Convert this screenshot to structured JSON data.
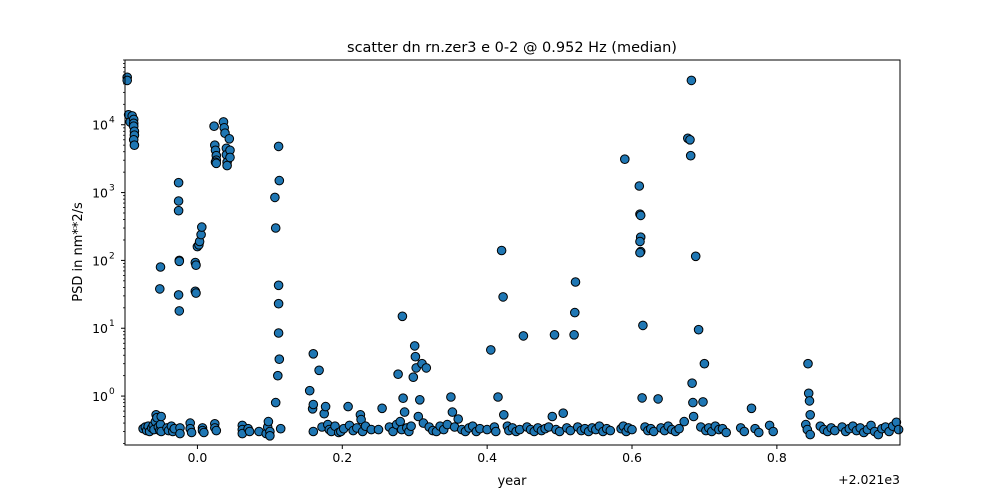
{
  "chart_data": {
    "type": "scatter",
    "title": "scatter dn rn.zer3 e 0-2 @ 0.952 Hz (median)",
    "xlabel": "year",
    "ylabel": "PSD in nm**2/s",
    "x_offset_label": "+2.021e3",
    "x_scale": "linear",
    "y_scale": "log",
    "xlim": [
      -0.1,
      0.97
    ],
    "ylim": [
      0.19,
      90000
    ],
    "x_ticks": [
      0.0,
      0.2,
      0.4,
      0.6,
      0.8
    ],
    "x_tick_labels": [
      "0.0",
      "0.2",
      "0.4",
      "0.6",
      "0.8"
    ],
    "y_ticks": [
      1,
      10,
      100,
      1000,
      10000
    ],
    "y_tick_labels": [
      "10",
      "10",
      "10",
      "10",
      "10"
    ],
    "y_tick_exponents": [
      "0",
      "1",
      "2",
      "3",
      "4"
    ],
    "grid": false,
    "legend": "none",
    "marker_color": "#1f77b4",
    "marker_edge": "#000000",
    "series": [
      {
        "points": [
          [
            -0.097,
            50000
          ],
          [
            -0.097,
            45000
          ],
          [
            -0.095,
            14000
          ],
          [
            -0.093,
            11000
          ],
          [
            -0.09,
            13500
          ],
          [
            -0.088,
            12000
          ],
          [
            -0.088,
            10500
          ],
          [
            -0.088,
            9500
          ],
          [
            -0.087,
            8000
          ],
          [
            -0.087,
            7000
          ],
          [
            -0.088,
            6000
          ],
          [
            -0.087,
            5000
          ],
          [
            -0.075,
            0.33
          ],
          [
            -0.072,
            0.35
          ],
          [
            -0.07,
            0.31
          ],
          [
            -0.068,
            0.36
          ],
          [
            -0.066,
            0.3
          ],
          [
            -0.063,
            0.34
          ],
          [
            -0.061,
            0.37
          ],
          [
            -0.06,
            0.32
          ],
          [
            -0.058,
            0.42
          ],
          [
            -0.057,
            0.53
          ],
          [
            -0.056,
            0.48
          ],
          [
            -0.054,
            0.35
          ],
          [
            -0.052,
            0.31
          ],
          [
            -0.051,
            0.38
          ],
          [
            -0.05,
            0.5
          ],
          [
            -0.05,
            0.3
          ],
          [
            -0.051,
            80
          ],
          [
            -0.052,
            38
          ],
          [
            -0.042,
            0.34
          ],
          [
            -0.04,
            0.31
          ],
          [
            -0.036,
            0.36
          ],
          [
            -0.034,
            0.3
          ],
          [
            -0.032,
            0.33
          ],
          [
            -0.026,
            1400
          ],
          [
            -0.026,
            750
          ],
          [
            -0.026,
            540
          ],
          [
            -0.025,
            100
          ],
          [
            -0.025,
            97
          ],
          [
            -0.026,
            31
          ],
          [
            -0.025,
            18
          ],
          [
            -0.024,
            0.34
          ],
          [
            -0.024,
            0.28
          ],
          [
            -0.01,
            0.4
          ],
          [
            -0.01,
            0.33
          ],
          [
            -0.008,
            0.29
          ],
          [
            -0.003,
            93
          ],
          [
            -0.002,
            85
          ],
          [
            -0.003,
            35
          ],
          [
            -0.002,
            33
          ],
          [
            0.0,
            160
          ],
          [
            0.002,
            170
          ],
          [
            0.003,
            190
          ],
          [
            0.005,
            240
          ],
          [
            0.006,
            310
          ],
          [
            0.007,
            0.34
          ],
          [
            0.007,
            0.31
          ],
          [
            0.009,
            0.29
          ],
          [
            0.023,
            9500
          ],
          [
            0.024,
            5000
          ],
          [
            0.025,
            4200
          ],
          [
            0.026,
            3500
          ],
          [
            0.026,
            3000
          ],
          [
            0.025,
            2800
          ],
          [
            0.026,
            2700
          ],
          [
            0.024,
            0.39
          ],
          [
            0.024,
            0.34
          ],
          [
            0.026,
            0.31
          ],
          [
            0.036,
            11000
          ],
          [
            0.037,
            9000
          ],
          [
            0.038,
            7500
          ],
          [
            0.04,
            4500
          ],
          [
            0.04,
            3600
          ],
          [
            0.041,
            2800
          ],
          [
            0.041,
            2500
          ],
          [
            0.044,
            6200
          ],
          [
            0.045,
            4200
          ],
          [
            0.045,
            3300
          ],
          [
            0.062,
            0.37
          ],
          [
            0.062,
            0.32
          ],
          [
            0.062,
            0.28
          ],
          [
            0.07,
            0.33
          ],
          [
            0.072,
            0.3
          ],
          [
            0.085,
            0.3
          ],
          [
            0.095,
            0.28
          ],
          [
            0.097,
            0.35
          ],
          [
            0.098,
            0.42
          ],
          [
            0.1,
            0.3
          ],
          [
            0.1,
            0.26
          ],
          [
            0.107,
            850
          ],
          [
            0.108,
            300
          ],
          [
            0.108,
            0.8
          ],
          [
            0.112,
            4800
          ],
          [
            0.113,
            1500
          ],
          [
            0.112,
            43
          ],
          [
            0.112,
            23
          ],
          [
            0.112,
            8.5
          ],
          [
            0.113,
            3.5
          ],
          [
            0.111,
            2.0
          ],
          [
            0.115,
            0.33
          ],
          [
            0.155,
            1.2
          ],
          [
            0.159,
            0.65
          ],
          [
            0.16,
            4.2
          ],
          [
            0.16,
            0.75
          ],
          [
            0.16,
            0.3
          ],
          [
            0.168,
            2.4
          ],
          [
            0.172,
            0.35
          ],
          [
            0.175,
            0.55
          ],
          [
            0.177,
            0.7
          ],
          [
            0.18,
            0.38
          ],
          [
            0.182,
            0.32
          ],
          [
            0.185,
            0.3
          ],
          [
            0.19,
            0.36
          ],
          [
            0.195,
            0.29
          ],
          [
            0.198,
            0.3
          ],
          [
            0.202,
            0.33
          ],
          [
            0.208,
            0.7
          ],
          [
            0.21,
            0.37
          ],
          [
            0.215,
            0.31
          ],
          [
            0.22,
            0.34
          ],
          [
            0.225,
            0.53
          ],
          [
            0.226,
            0.45
          ],
          [
            0.228,
            0.3
          ],
          [
            0.232,
            0.36
          ],
          [
            0.24,
            0.32
          ],
          [
            0.25,
            0.32
          ],
          [
            0.255,
            0.66
          ],
          [
            0.265,
            0.35
          ],
          [
            0.27,
            0.3
          ],
          [
            0.275,
            0.38
          ],
          [
            0.277,
            2.1
          ],
          [
            0.28,
            0.42
          ],
          [
            0.282,
            0.32
          ],
          [
            0.283,
            15
          ],
          [
            0.284,
            0.93
          ],
          [
            0.286,
            0.58
          ],
          [
            0.289,
            0.34
          ],
          [
            0.292,
            0.3
          ],
          [
            0.295,
            0.36
          ],
          [
            0.298,
            1.9
          ],
          [
            0.3,
            5.5
          ],
          [
            0.301,
            3.8
          ],
          [
            0.302,
            2.6
          ],
          [
            0.305,
            0.5
          ],
          [
            0.307,
            0.88
          ],
          [
            0.31,
            3.0
          ],
          [
            0.312,
            0.4
          ],
          [
            0.316,
            2.6
          ],
          [
            0.32,
            0.35
          ],
          [
            0.325,
            0.31
          ],
          [
            0.33,
            0.3
          ],
          [
            0.335,
            0.36
          ],
          [
            0.34,
            0.32
          ],
          [
            0.345,
            0.38
          ],
          [
            0.35,
            0.97
          ],
          [
            0.352,
            0.58
          ],
          [
            0.355,
            0.35
          ],
          [
            0.36,
            0.46
          ],
          [
            0.365,
            0.32
          ],
          [
            0.37,
            0.3
          ],
          [
            0.375,
            0.34
          ],
          [
            0.38,
            0.36
          ],
          [
            0.385,
            0.3
          ],
          [
            0.39,
            0.33
          ],
          [
            0.4,
            0.32
          ],
          [
            0.405,
            4.8
          ],
          [
            0.41,
            0.35
          ],
          [
            0.412,
            0.3
          ],
          [
            0.415,
            0.97
          ],
          [
            0.42,
            140
          ],
          [
            0.422,
            29
          ],
          [
            0.423,
            0.53
          ],
          [
            0.428,
            0.36
          ],
          [
            0.43,
            0.31
          ],
          [
            0.435,
            0.34
          ],
          [
            0.44,
            0.3
          ],
          [
            0.445,
            0.32
          ],
          [
            0.45,
            7.7
          ],
          [
            0.455,
            0.35
          ],
          [
            0.46,
            0.32
          ],
          [
            0.465,
            0.3
          ],
          [
            0.47,
            0.34
          ],
          [
            0.475,
            0.31
          ],
          [
            0.48,
            0.33
          ],
          [
            0.485,
            0.35
          ],
          [
            0.49,
            0.5
          ],
          [
            0.493,
            8.0
          ],
          [
            0.495,
            0.32
          ],
          [
            0.5,
            0.3
          ],
          [
            0.505,
            0.56
          ],
          [
            0.51,
            0.34
          ],
          [
            0.515,
            0.31
          ],
          [
            0.52,
            8.0
          ],
          [
            0.521,
            17
          ],
          [
            0.522,
            48
          ],
          [
            0.525,
            0.35
          ],
          [
            0.53,
            0.31
          ],
          [
            0.535,
            0.33
          ],
          [
            0.54,
            0.3
          ],
          [
            0.545,
            0.34
          ],
          [
            0.55,
            0.32
          ],
          [
            0.555,
            0.36
          ],
          [
            0.56,
            0.3
          ],
          [
            0.565,
            0.33
          ],
          [
            0.57,
            0.31
          ],
          [
            0.585,
            0.33
          ],
          [
            0.588,
            0.36
          ],
          [
            0.59,
            3100
          ],
          [
            0.592,
            0.3
          ],
          [
            0.595,
            0.34
          ],
          [
            0.6,
            0.32
          ],
          [
            0.61,
            1250
          ],
          [
            0.611,
            480
          ],
          [
            0.612,
            460
          ],
          [
            0.612,
            220
          ],
          [
            0.611,
            190
          ],
          [
            0.612,
            135
          ],
          [
            0.611,
            130
          ],
          [
            0.614,
            0.94
          ],
          [
            0.615,
            11
          ],
          [
            0.618,
            0.35
          ],
          [
            0.622,
            0.31
          ],
          [
            0.626,
            0.33
          ],
          [
            0.63,
            0.3
          ],
          [
            0.636,
            0.91
          ],
          [
            0.64,
            0.34
          ],
          [
            0.645,
            0.31
          ],
          [
            0.65,
            0.36
          ],
          [
            0.655,
            0.32
          ],
          [
            0.66,
            0.3
          ],
          [
            0.665,
            0.33
          ],
          [
            0.672,
            0.42
          ],
          [
            0.677,
            6300
          ],
          [
            0.68,
            6000
          ],
          [
            0.681,
            3500
          ],
          [
            0.682,
            45000
          ],
          [
            0.683,
            1.55
          ],
          [
            0.684,
            0.8
          ],
          [
            0.685,
            0.5
          ],
          [
            0.688,
            115
          ],
          [
            0.692,
            9.5
          ],
          [
            0.695,
            0.35
          ],
          [
            0.698,
            0.82
          ],
          [
            0.7,
            3.0
          ],
          [
            0.702,
            0.31
          ],
          [
            0.706,
            0.34
          ],
          [
            0.71,
            0.3
          ],
          [
            0.715,
            0.36
          ],
          [
            0.72,
            0.32
          ],
          [
            0.725,
            0.33
          ],
          [
            0.73,
            0.29
          ],
          [
            0.75,
            0.34
          ],
          [
            0.755,
            0.3
          ],
          [
            0.765,
            0.66
          ],
          [
            0.77,
            0.33
          ],
          [
            0.775,
            0.29
          ],
          [
            0.79,
            0.37
          ],
          [
            0.795,
            0.3
          ],
          [
            0.84,
            0.38
          ],
          [
            0.842,
            0.32
          ],
          [
            0.843,
            3.0
          ],
          [
            0.844,
            1.1
          ],
          [
            0.845,
            0.85
          ],
          [
            0.846,
            0.53
          ],
          [
            0.846,
            0.27
          ],
          [
            0.86,
            0.36
          ],
          [
            0.865,
            0.32
          ],
          [
            0.87,
            0.3
          ],
          [
            0.875,
            0.34
          ],
          [
            0.88,
            0.31
          ],
          [
            0.89,
            0.35
          ],
          [
            0.895,
            0.3
          ],
          [
            0.9,
            0.33
          ],
          [
            0.905,
            0.36
          ],
          [
            0.91,
            0.31
          ],
          [
            0.915,
            0.34
          ],
          [
            0.92,
            0.29
          ],
          [
            0.925,
            0.32
          ],
          [
            0.93,
            0.37
          ],
          [
            0.935,
            0.3
          ],
          [
            0.94,
            0.27
          ],
          [
            0.945,
            0.33
          ],
          [
            0.95,
            0.35
          ],
          [
            0.955,
            0.3
          ],
          [
            0.96,
            0.36
          ],
          [
            0.965,
            0.41
          ],
          [
            0.968,
            0.32
          ]
        ]
      }
    ]
  }
}
